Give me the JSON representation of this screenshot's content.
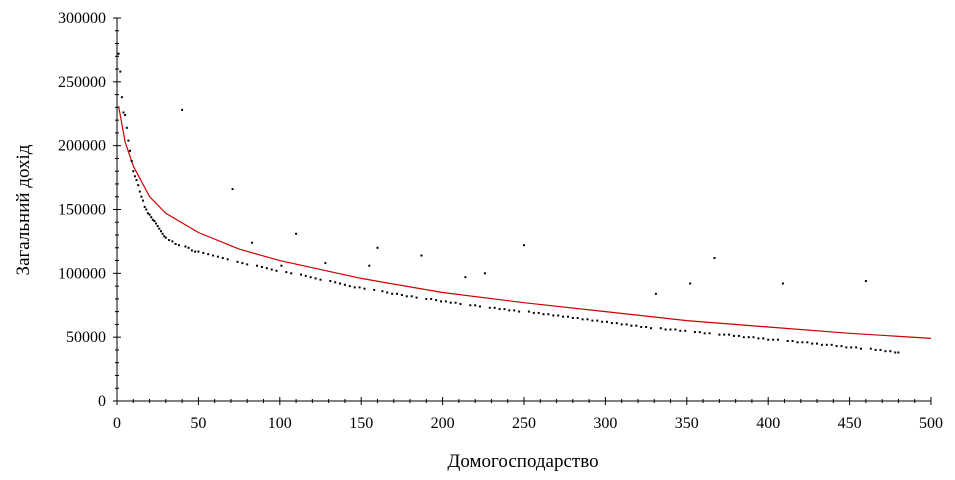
{
  "chart_data": {
    "type": "scatter",
    "xlabel": "Домогосподарство",
    "ylabel": "Загальний дохід",
    "xlim": [
      0,
      500
    ],
    "ylim": [
      0,
      300000
    ],
    "x_ticks": [
      0,
      50,
      100,
      150,
      200,
      250,
      300,
      350,
      400,
      450,
      500
    ],
    "y_ticks": [
      0,
      50000,
      100000,
      150000,
      200000,
      250000,
      300000
    ],
    "grid": false,
    "legend": "none",
    "colors": {
      "points": "#000000",
      "trend": "#cc0000",
      "axis": "#000000"
    },
    "series": [
      {
        "kind": "scatter",
        "points": [
          [
            1,
            272000
          ],
          [
            2,
            258000
          ],
          [
            3,
            238000
          ],
          [
            4,
            226000
          ],
          [
            5,
            224000
          ],
          [
            6,
            214000
          ],
          [
            7,
            204000
          ],
          [
            8,
            196000
          ],
          [
            9,
            188000
          ],
          [
            10,
            180000
          ],
          [
            11,
            176000
          ],
          [
            12,
            173000
          ],
          [
            13,
            169000
          ],
          [
            14,
            164000
          ],
          [
            15,
            160000
          ],
          [
            16,
            157000
          ],
          [
            17,
            152000
          ],
          [
            18,
            150000
          ],
          [
            19,
            147000
          ],
          [
            20,
            146000
          ],
          [
            21,
            144000
          ],
          [
            22,
            142000
          ],
          [
            23,
            141000
          ],
          [
            24,
            139000
          ],
          [
            25,
            137000
          ],
          [
            26,
            135000
          ],
          [
            27,
            133000
          ],
          [
            28,
            131000
          ],
          [
            29,
            129000
          ],
          [
            30,
            128000
          ],
          [
            32,
            126000
          ],
          [
            34,
            125000
          ],
          [
            36,
            123000
          ],
          [
            38,
            122000
          ],
          [
            40,
            228000
          ],
          [
            42,
            121000
          ],
          [
            44,
            120000
          ],
          [
            46,
            118000
          ],
          [
            48,
            117000
          ],
          [
            50,
            117000
          ],
          [
            53,
            116000
          ],
          [
            56,
            115000
          ],
          [
            59,
            114000
          ],
          [
            62,
            113000
          ],
          [
            65,
            112000
          ],
          [
            68,
            111000
          ],
          [
            71,
            166000
          ],
          [
            74,
            109000
          ],
          [
            77,
            108000
          ],
          [
            80,
            107000
          ],
          [
            83,
            124000
          ],
          [
            86,
            106000
          ],
          [
            89,
            105000
          ],
          [
            92,
            104000
          ],
          [
            95,
            103000
          ],
          [
            98,
            102000
          ],
          [
            101,
            106000
          ],
          [
            104,
            101000
          ],
          [
            107,
            100000
          ],
          [
            110,
            131000
          ],
          [
            113,
            99000
          ],
          [
            116,
            98000
          ],
          [
            119,
            97000
          ],
          [
            122,
            96000
          ],
          [
            125,
            95000
          ],
          [
            128,
            108000
          ],
          [
            131,
            94000
          ],
          [
            134,
            93000
          ],
          [
            137,
            92000
          ],
          [
            140,
            91000
          ],
          [
            143,
            90000
          ],
          [
            146,
            89000
          ],
          [
            149,
            89000
          ],
          [
            152,
            88000
          ],
          [
            155,
            106000
          ],
          [
            158,
            87000
          ],
          [
            160,
            120000
          ],
          [
            163,
            86000
          ],
          [
            166,
            85000
          ],
          [
            169,
            84000
          ],
          [
            172,
            84000
          ],
          [
            175,
            83000
          ],
          [
            178,
            82000
          ],
          [
            181,
            82000
          ],
          [
            184,
            81000
          ],
          [
            187,
            114000
          ],
          [
            190,
            80000
          ],
          [
            193,
            80000
          ],
          [
            196,
            79000
          ],
          [
            199,
            78000
          ],
          [
            202,
            78000
          ],
          [
            205,
            77000
          ],
          [
            208,
            77000
          ],
          [
            211,
            76000
          ],
          [
            214,
            97000
          ],
          [
            217,
            75000
          ],
          [
            220,
            75000
          ],
          [
            223,
            74000
          ],
          [
            226,
            100000
          ],
          [
            229,
            73000
          ],
          [
            232,
            73000
          ],
          [
            235,
            72000
          ],
          [
            238,
            72000
          ],
          [
            241,
            71000
          ],
          [
            244,
            71000
          ],
          [
            247,
            70000
          ],
          [
            250,
            122000
          ],
          [
            253,
            70000
          ],
          [
            256,
            69000
          ],
          [
            259,
            69000
          ],
          [
            262,
            68000
          ],
          [
            265,
            68000
          ],
          [
            268,
            67000
          ],
          [
            271,
            67000
          ],
          [
            274,
            66000
          ],
          [
            277,
            66000
          ],
          [
            280,
            65000
          ],
          [
            283,
            65000
          ],
          [
            286,
            64000
          ],
          [
            289,
            64000
          ],
          [
            292,
            63000
          ],
          [
            295,
            63000
          ],
          [
            298,
            62000
          ],
          [
            301,
            62000
          ],
          [
            304,
            61000
          ],
          [
            307,
            61000
          ],
          [
            310,
            60000
          ],
          [
            313,
            60000
          ],
          [
            316,
            59000
          ],
          [
            319,
            59000
          ],
          [
            322,
            58000
          ],
          [
            325,
            58000
          ],
          [
            328,
            57000
          ],
          [
            331,
            84000
          ],
          [
            334,
            57000
          ],
          [
            337,
            56000
          ],
          [
            340,
            56000
          ],
          [
            343,
            56000
          ],
          [
            346,
            55000
          ],
          [
            349,
            55000
          ],
          [
            352,
            92000
          ],
          [
            355,
            54000
          ],
          [
            358,
            54000
          ],
          [
            361,
            53000
          ],
          [
            364,
            53000
          ],
          [
            367,
            112000
          ],
          [
            370,
            52000
          ],
          [
            373,
            52000
          ],
          [
            376,
            52000
          ],
          [
            379,
            51000
          ],
          [
            382,
            51000
          ],
          [
            385,
            50000
          ],
          [
            388,
            50000
          ],
          [
            391,
            50000
          ],
          [
            394,
            49000
          ],
          [
            397,
            49000
          ],
          [
            400,
            48000
          ],
          [
            403,
            48000
          ],
          [
            406,
            48000
          ],
          [
            409,
            92000
          ],
          [
            412,
            47000
          ],
          [
            415,
            47000
          ],
          [
            418,
            46000
          ],
          [
            421,
            46000
          ],
          [
            424,
            46000
          ],
          [
            427,
            45000
          ],
          [
            430,
            45000
          ],
          [
            433,
            44000
          ],
          [
            436,
            44000
          ],
          [
            439,
            44000
          ],
          [
            442,
            43000
          ],
          [
            445,
            43000
          ],
          [
            448,
            42000
          ],
          [
            451,
            42000
          ],
          [
            454,
            42000
          ],
          [
            457,
            41000
          ],
          [
            460,
            94000
          ],
          [
            463,
            41000
          ],
          [
            466,
            40000
          ],
          [
            469,
            40000
          ],
          [
            472,
            39000
          ],
          [
            475,
            39000
          ],
          [
            478,
            38000
          ],
          [
            480,
            38000
          ]
        ]
      },
      {
        "kind": "trend",
        "x": [
          1,
          5,
          10,
          20,
          30,
          50,
          75,
          100,
          150,
          200,
          250,
          300,
          350,
          400,
          450,
          500
        ],
        "y": [
          231000,
          203000,
          184000,
          160000,
          147000,
          132000,
          119000,
          110000,
          96000,
          85000,
          77000,
          70000,
          63000,
          58000,
          53000,
          49000
        ]
      }
    ]
  }
}
